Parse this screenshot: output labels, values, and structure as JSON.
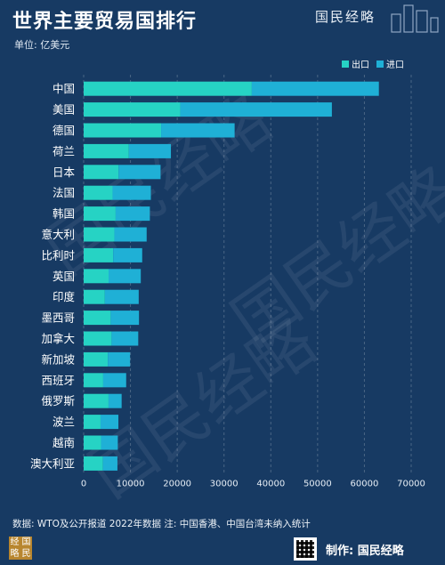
{
  "header": {
    "title": "世界主要贸易国排行",
    "unit": "单位: 亿美元",
    "brand": "国民经略"
  },
  "colors": {
    "export": "#26d3c4",
    "import": "#1fb0d6",
    "background": "#173a63"
  },
  "chart_data": {
    "type": "bar",
    "orientation": "horizontal",
    "stacked": true,
    "title": "世界主要贸易国排行",
    "categories": [
      "中国",
      "美国",
      "德国",
      "荷兰",
      "日本",
      "法国",
      "韩国",
      "意大利",
      "比利时",
      "英国",
      "印度",
      "墨西哥",
      "加拿大",
      "新加坡",
      "西班牙",
      "俄罗斯",
      "波兰",
      "越南",
      "澳大利亚"
    ],
    "series": [
      {
        "name": "出口",
        "values": [
          35936,
          20648,
          16555,
          9657,
          7469,
          6179,
          6836,
          6569,
          6306,
          5326,
          4533,
          5780,
          5970,
          5158,
          4172,
          5316,
          3610,
          3713,
          4122
        ]
      },
      {
        "name": "进口",
        "values": [
          27160,
          32402,
          15711,
          8991,
          8970,
          8183,
          7314,
          6894,
          6205,
          6883,
          7233,
          6045,
          5694,
          4759,
          4913,
          2800,
          3810,
          3588,
          3095
        ]
      }
    ],
    "xticks": [
      0,
      10000,
      20000,
      30000,
      40000,
      50000,
      60000,
      70000
    ],
    "xlim": [
      0,
      70000
    ],
    "grid": true,
    "legend": "top-right"
  },
  "legend": {
    "export_label": "出口",
    "import_label": "进口"
  },
  "footer": {
    "source": "数据: WTO及公开报道 2022年数据 注: 中国香港、中国台湾未纳入统计",
    "made_by": "制作: 国民经略",
    "logo_chars": [
      "经",
      "国",
      "略",
      "民"
    ]
  },
  "watermark": "国民经略"
}
